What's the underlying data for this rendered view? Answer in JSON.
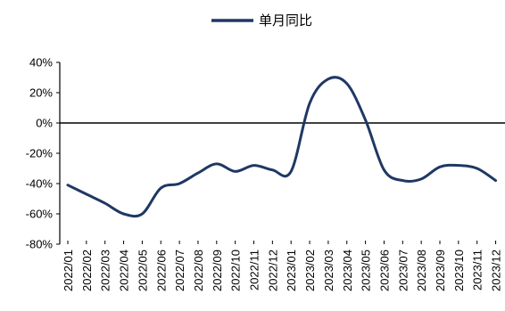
{
  "chart_data": {
    "type": "line",
    "x": [
      "2022/01",
      "2022/02",
      "2022/03",
      "2022/04",
      "2022/05",
      "2022/06",
      "2022/07",
      "2022/08",
      "2022/09",
      "2022/10",
      "2022/11",
      "2022/12",
      "2023/01",
      "2023/02",
      "2023/03",
      "2023/04",
      "2023/05",
      "2023/06",
      "2023/07",
      "2023/08",
      "2023/09",
      "2023/10",
      "2023/11",
      "2023/12"
    ],
    "series": [
      {
        "name": "单月同比",
        "color": "#1f3864",
        "values": [
          -41,
          -47,
          -53,
          -60,
          -60,
          -43,
          -40,
          -33,
          -27,
          -32,
          -28,
          -31,
          -32,
          13,
          29,
          26,
          2,
          -31,
          -38,
          -37,
          -29,
          -28,
          -30,
          -38
        ]
      }
    ],
    "yticks": [
      "40%",
      "20%",
      "0%",
      "-20%",
      "-40%",
      "-60%",
      "-80%"
    ],
    "ylim": [
      -80,
      40
    ],
    "legend_position": "top-center",
    "grid": false
  }
}
